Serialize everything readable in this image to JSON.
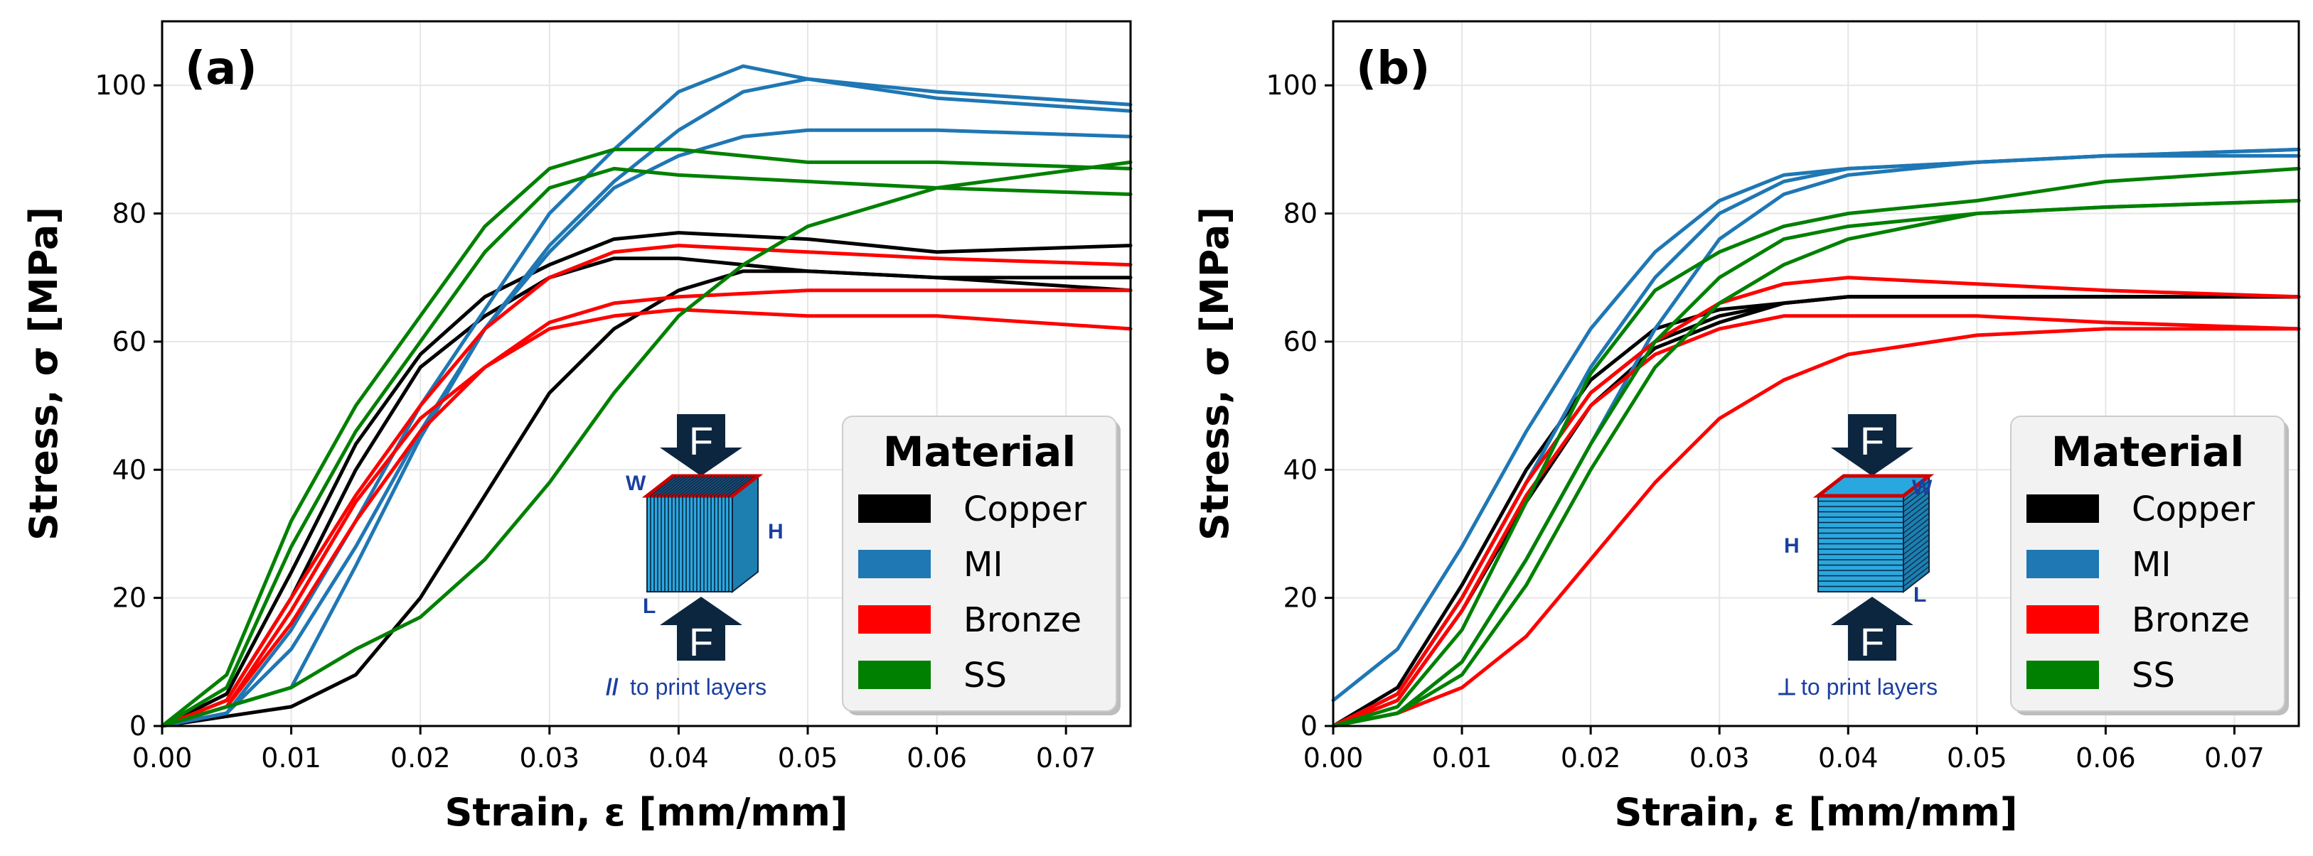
{
  "chart_data": [
    {
      "type": "line",
      "panel_label": "(a)",
      "xlabel": "Strain, ε [mm/mm]",
      "ylabel": "Stress, σ [MPa]",
      "xlim": [
        0,
        0.075
      ],
      "ylim": [
        0,
        110
      ],
      "x_ticks": [
        "0.00",
        "0.01",
        "0.02",
        "0.03",
        "0.04",
        "0.05",
        "0.06",
        "0.07"
      ],
      "x_tick_values": [
        0,
        0.01,
        0.02,
        0.03,
        0.04,
        0.05,
        0.06,
        0.07
      ],
      "y_ticks": [
        "0",
        "20",
        "40",
        "60",
        "80",
        "100"
      ],
      "y_tick_values": [
        0,
        20,
        40,
        60,
        80,
        100
      ],
      "grid": true,
      "legend": {
        "title": "Material",
        "position": "bottom-right",
        "entries": [
          {
            "label": "Copper",
            "color": "#000000"
          },
          {
            "label": "MI",
            "color": "#1f77b4"
          },
          {
            "label": "Bronze",
            "color": "#ff0000"
          },
          {
            "label": "SS",
            "color": "#008000"
          }
        ]
      },
      "inset": {
        "orientation": "parallel",
        "force_label": "F",
        "dims": {
          "w": "W",
          "h": "H",
          "l": "L"
        },
        "caption_symbol": "//",
        "caption": "to print layers"
      },
      "series": [
        {
          "name": "Copper",
          "color": "#000000",
          "x": [
            0,
            0.005,
            0.01,
            0.015,
            0.02,
            0.025,
            0.03,
            0.035,
            0.04,
            0.05,
            0.06,
            0.075
          ],
          "y": [
            0,
            5,
            24,
            44,
            58,
            67,
            72,
            76,
            77,
            76,
            74,
            75
          ]
        },
        {
          "name": "Copper",
          "color": "#000000",
          "x": [
            0,
            0.005,
            0.01,
            0.015,
            0.02,
            0.025,
            0.03,
            0.035,
            0.04,
            0.05,
            0.06,
            0.075
          ],
          "y": [
            0,
            4,
            20,
            40,
            56,
            64,
            70,
            73,
            73,
            71,
            70,
            70
          ]
        },
        {
          "name": "Copper",
          "color": "#000000",
          "x": [
            0,
            0.01,
            0.015,
            0.02,
            0.025,
            0.03,
            0.035,
            0.04,
            0.045,
            0.05,
            0.06,
            0.075
          ],
          "y": [
            0,
            3,
            8,
            20,
            36,
            52,
            62,
            68,
            71,
            71,
            70,
            68
          ]
        },
        {
          "name": "MI",
          "color": "#1f77b4",
          "x": [
            0,
            0.005,
            0.01,
            0.015,
            0.02,
            0.025,
            0.03,
            0.035,
            0.04,
            0.045,
            0.05,
            0.06,
            0.075
          ],
          "y": [
            0,
            2,
            15,
            32,
            50,
            65,
            80,
            90,
            99,
            103,
            101,
            99,
            97
          ]
        },
        {
          "name": "MI",
          "color": "#1f77b4",
          "x": [
            0,
            0.005,
            0.01,
            0.015,
            0.02,
            0.025,
            0.03,
            0.035,
            0.04,
            0.045,
            0.05,
            0.06,
            0.075
          ],
          "y": [
            0,
            2,
            12,
            28,
            46,
            62,
            75,
            85,
            93,
            99,
            101,
            98,
            96
          ]
        },
        {
          "name": "MI",
          "color": "#1f77b4",
          "x": [
            0,
            0.01,
            0.015,
            0.02,
            0.025,
            0.03,
            0.035,
            0.04,
            0.045,
            0.05,
            0.06,
            0.075
          ],
          "y": [
            0,
            6,
            25,
            45,
            62,
            74,
            84,
            89,
            92,
            93,
            93,
            92
          ]
        },
        {
          "name": "Bronze",
          "color": "#ff0000",
          "x": [
            0,
            0.005,
            0.01,
            0.015,
            0.02,
            0.025,
            0.03,
            0.035,
            0.04,
            0.05,
            0.06,
            0.075
          ],
          "y": [
            0,
            4,
            20,
            36,
            50,
            62,
            70,
            74,
            75,
            74,
            73,
            72
          ]
        },
        {
          "name": "Bronze",
          "color": "#ff0000",
          "x": [
            0,
            0.005,
            0.01,
            0.015,
            0.02,
            0.025,
            0.03,
            0.035,
            0.04,
            0.05,
            0.06,
            0.075
          ],
          "y": [
            0,
            3,
            16,
            32,
            46,
            56,
            63,
            66,
            67,
            68,
            68,
            68
          ]
        },
        {
          "name": "Bronze",
          "color": "#ff0000",
          "x": [
            0,
            0.005,
            0.01,
            0.015,
            0.02,
            0.025,
            0.03,
            0.035,
            0.04,
            0.05,
            0.06,
            0.075
          ],
          "y": [
            0,
            3,
            18,
            35,
            48,
            56,
            62,
            64,
            65,
            64,
            64,
            62
          ]
        },
        {
          "name": "SS",
          "color": "#008000",
          "x": [
            0,
            0.005,
            0.01,
            0.015,
            0.02,
            0.025,
            0.03,
            0.035,
            0.04,
            0.05,
            0.06,
            0.075
          ],
          "y": [
            0,
            8,
            32,
            50,
            64,
            78,
            87,
            90,
            90,
            88,
            88,
            87
          ]
        },
        {
          "name": "SS",
          "color": "#008000",
          "x": [
            0,
            0.005,
            0.01,
            0.015,
            0.02,
            0.025,
            0.03,
            0.035,
            0.04,
            0.05,
            0.06,
            0.075
          ],
          "y": [
            0,
            6,
            28,
            46,
            60,
            74,
            84,
            87,
            86,
            85,
            84,
            83
          ]
        },
        {
          "name": "SS",
          "color": "#008000",
          "x": [
            0,
            0.01,
            0.015,
            0.02,
            0.025,
            0.03,
            0.035,
            0.04,
            0.045,
            0.05,
            0.06,
            0.075
          ],
          "y": [
            0,
            6,
            12,
            17,
            26,
            38,
            52,
            64,
            72,
            78,
            84,
            88
          ]
        }
      ]
    },
    {
      "type": "line",
      "panel_label": "(b)",
      "xlabel": "Strain, ε [mm/mm]",
      "ylabel": "Stress, σ [MPa]",
      "xlim": [
        0,
        0.075
      ],
      "ylim": [
        0,
        110
      ],
      "x_ticks": [
        "0.00",
        "0.01",
        "0.02",
        "0.03",
        "0.04",
        "0.05",
        "0.06",
        "0.07"
      ],
      "x_tick_values": [
        0,
        0.01,
        0.02,
        0.03,
        0.04,
        0.05,
        0.06,
        0.07
      ],
      "y_ticks": [
        "0",
        "20",
        "40",
        "60",
        "80",
        "100"
      ],
      "y_tick_values": [
        0,
        20,
        40,
        60,
        80,
        100
      ],
      "grid": true,
      "legend": {
        "title": "Material",
        "position": "bottom-right",
        "entries": [
          {
            "label": "Copper",
            "color": "#000000"
          },
          {
            "label": "MI",
            "color": "#1f77b4"
          },
          {
            "label": "Bronze",
            "color": "#ff0000"
          },
          {
            "label": "SS",
            "color": "#008000"
          }
        ]
      },
      "inset": {
        "orientation": "perpendicular",
        "force_label": "F",
        "dims": {
          "w": "W",
          "h": "H",
          "l": "L"
        },
        "caption_symbol": "⊥",
        "caption": "to print layers"
      },
      "series": [
        {
          "name": "Copper",
          "color": "#000000",
          "x": [
            0,
            0.005,
            0.01,
            0.015,
            0.02,
            0.025,
            0.03,
            0.035,
            0.04,
            0.05,
            0.06,
            0.075
          ],
          "y": [
            0,
            6,
            22,
            40,
            54,
            62,
            65,
            66,
            67,
            67,
            67,
            67
          ]
        },
        {
          "name": "Copper",
          "color": "#000000",
          "x": [
            0,
            0.005,
            0.01,
            0.015,
            0.02,
            0.025,
            0.03,
            0.035,
            0.04,
            0.05,
            0.06,
            0.075
          ],
          "y": [
            0,
            5,
            20,
            38,
            52,
            60,
            64,
            66,
            67,
            67,
            67,
            67
          ]
        },
        {
          "name": "Copper",
          "color": "#000000",
          "x": [
            0,
            0.005,
            0.01,
            0.015,
            0.02,
            0.025,
            0.03,
            0.035,
            0.04,
            0.05,
            0.06,
            0.075
          ],
          "y": [
            0,
            4,
            18,
            35,
            50,
            59,
            63,
            66,
            67,
            67,
            67,
            67
          ]
        },
        {
          "name": "MI",
          "color": "#1f77b4",
          "x": [
            0,
            0.005,
            0.01,
            0.015,
            0.02,
            0.025,
            0.03,
            0.035,
            0.04,
            0.05,
            0.06,
            0.075
          ],
          "y": [
            4,
            12,
            28,
            46,
            62,
            74,
            82,
            86,
            87,
            88,
            89,
            90
          ]
        },
        {
          "name": "MI",
          "color": "#1f77b4",
          "x": [
            0,
            0.005,
            0.01,
            0.015,
            0.02,
            0.025,
            0.03,
            0.035,
            0.04,
            0.05,
            0.06,
            0.075
          ],
          "y": [
            0,
            5,
            20,
            38,
            56,
            70,
            80,
            85,
            87,
            88,
            89,
            89
          ]
        },
        {
          "name": "MI",
          "color": "#1f77b4",
          "x": [
            0,
            0.005,
            0.01,
            0.015,
            0.02,
            0.025,
            0.03,
            0.035,
            0.04,
            0.05,
            0.06,
            0.075
          ],
          "y": [
            0,
            2,
            10,
            26,
            44,
            62,
            76,
            83,
            86,
            88,
            89,
            90
          ]
        },
        {
          "name": "Bronze",
          "color": "#ff0000",
          "x": [
            0,
            0.005,
            0.01,
            0.015,
            0.02,
            0.025,
            0.03,
            0.035,
            0.04,
            0.05,
            0.06,
            0.075
          ],
          "y": [
            0,
            5,
            20,
            38,
            52,
            60,
            66,
            69,
            70,
            69,
            68,
            67
          ]
        },
        {
          "name": "Bronze",
          "color": "#ff0000",
          "x": [
            0,
            0.005,
            0.01,
            0.015,
            0.02,
            0.025,
            0.03,
            0.035,
            0.04,
            0.05,
            0.06,
            0.075
          ],
          "y": [
            0,
            4,
            18,
            36,
            50,
            58,
            62,
            64,
            64,
            64,
            63,
            62
          ]
        },
        {
          "name": "Bronze",
          "color": "#ff0000",
          "x": [
            0,
            0.005,
            0.01,
            0.015,
            0.02,
            0.025,
            0.03,
            0.035,
            0.04,
            0.05,
            0.06,
            0.075
          ],
          "y": [
            0,
            2,
            6,
            14,
            26,
            38,
            48,
            54,
            58,
            61,
            62,
            62
          ]
        },
        {
          "name": "SS",
          "color": "#008000",
          "x": [
            0,
            0.005,
            0.01,
            0.015,
            0.02,
            0.025,
            0.03,
            0.035,
            0.04,
            0.05,
            0.06,
            0.075
          ],
          "y": [
            0,
            3,
            15,
            35,
            55,
            68,
            74,
            78,
            80,
            82,
            85,
            87
          ]
        },
        {
          "name": "SS",
          "color": "#008000",
          "x": [
            0,
            0.005,
            0.01,
            0.015,
            0.02,
            0.025,
            0.03,
            0.035,
            0.04,
            0.05,
            0.06,
            0.075
          ],
          "y": [
            0,
            2,
            10,
            26,
            44,
            60,
            70,
            76,
            78,
            80,
            81,
            82
          ]
        },
        {
          "name": "SS",
          "color": "#008000",
          "x": [
            0,
            0.005,
            0.01,
            0.015,
            0.02,
            0.025,
            0.03,
            0.035,
            0.04,
            0.05,
            0.06,
            0.075
          ],
          "y": [
            0,
            2,
            8,
            22,
            40,
            56,
            66,
            72,
            76,
            80,
            81,
            82
          ]
        }
      ]
    }
  ]
}
